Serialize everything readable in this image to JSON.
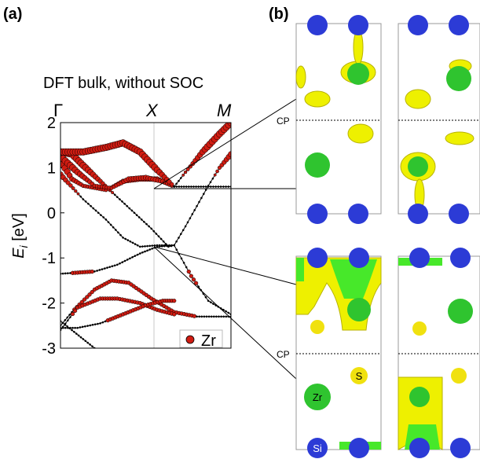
{
  "panel_a_label": "(a)",
  "panel_b_label": "(b)",
  "plot_title": "DFT bulk, without SOC",
  "kpoints": [
    "Γ",
    "X",
    "M"
  ],
  "ylabel_E": "E",
  "ylabel_sub": "i",
  "ylabel_unit": " [eV]",
  "legend_label": "Zr",
  "cp_label": "CP",
  "atom_labels": {
    "zr": "Zr",
    "s": "S",
    "si": "Si"
  },
  "colors": {
    "zr_marker": "#d01c12",
    "si_atom": "#2c3bd6",
    "zr_atom": "#2fc42f",
    "s_atom": "#f0e10f",
    "isosurface": "#eef000",
    "isosurface_green": "#47e82a"
  },
  "chart_data": {
    "type": "line",
    "title": "DFT bulk, without SOC",
    "xlabel": "",
    "ylabel": "E_i [eV]",
    "x_ticks": [
      "Γ",
      "X",
      "M"
    ],
    "xlim": [
      0,
      1.5
    ],
    "ylim": [
      -3,
      2
    ],
    "y_ticks": [
      2,
      1,
      0,
      -1,
      -2,
      -3
    ],
    "legend": "bottom-right",
    "series": [
      {
        "values": [
          [
            0,
            1.35
          ],
          [
            0.1,
            1.3
          ],
          [
            0.2,
            1.05
          ],
          [
            0.35,
            0.7
          ],
          [
            0.5,
            0.35
          ],
          [
            0.65,
            0.0
          ],
          [
            0.8,
            -0.35
          ],
          [
            0.95,
            -0.75
          ],
          [
            1.0,
            -0.72
          ],
          [
            1.15,
            -1.4
          ],
          [
            1.3,
            -1.95
          ],
          [
            1.5,
            -2.25
          ]
        ]
      },
      {
        "values": [
          [
            0,
            1.15
          ],
          [
            0.1,
            0.75
          ],
          [
            0.2,
            0.6
          ],
          [
            0.3,
            0.55
          ],
          [
            0.4,
            0.5
          ],
          [
            0.55,
            0.7
          ],
          [
            0.7,
            0.75
          ],
          [
            0.85,
            0.75
          ],
          [
            1.0,
            0.58
          ],
          [
            1.1,
            0.9
          ],
          [
            1.25,
            1.35
          ],
          [
            1.4,
            1.75
          ],
          [
            1.5,
            2.0
          ]
        ]
      },
      {
        "values": [
          [
            0,
            1.25
          ],
          [
            0.15,
            0.9
          ],
          [
            0.3,
            0.6
          ],
          [
            0.45,
            0.55
          ],
          [
            0.6,
            0.75
          ],
          [
            0.75,
            0.78
          ],
          [
            0.9,
            0.7
          ],
          [
            1.0,
            0.58
          ],
          [
            1.15,
            0.58
          ],
          [
            1.3,
            0.58
          ],
          [
            1.5,
            0.58
          ]
        ]
      },
      {
        "values": [
          [
            0,
            1.35
          ],
          [
            0.2,
            1.35
          ],
          [
            0.4,
            1.45
          ],
          [
            0.55,
            1.55
          ],
          [
            0.7,
            1.35
          ],
          [
            0.85,
            0.95
          ],
          [
            1.0,
            0.58
          ]
        ]
      },
      {
        "values": [
          [
            0,
            0.85
          ],
          [
            0.2,
            0.3
          ],
          [
            0.4,
            -0.15
          ],
          [
            0.55,
            -0.55
          ],
          [
            0.7,
            -0.75
          ],
          [
            0.85,
            -0.72
          ],
          [
            1.0,
            -0.72
          ]
        ]
      },
      {
        "values": [
          [
            0,
            -1.35
          ],
          [
            0.3,
            -1.3
          ],
          [
            0.5,
            -1.15
          ],
          [
            0.7,
            -0.9
          ],
          [
            0.85,
            -0.75
          ],
          [
            1.0,
            -0.72
          ],
          [
            1.1,
            -0.3
          ],
          [
            1.2,
            0.15
          ],
          [
            1.3,
            0.6
          ],
          [
            1.4,
            1.0
          ],
          [
            1.5,
            1.3
          ]
        ]
      },
      {
        "values": [
          [
            0,
            -2.5
          ],
          [
            0.1,
            -2.2
          ],
          [
            0.3,
            -1.7
          ],
          [
            0.45,
            -1.5
          ],
          [
            0.6,
            -1.55
          ],
          [
            0.8,
            -1.9
          ],
          [
            1.0,
            -2.2
          ],
          [
            1.2,
            -2.3
          ],
          [
            1.35,
            -2.3
          ],
          [
            1.5,
            -2.3
          ]
        ]
      },
      {
        "values": [
          [
            0,
            -2.6
          ],
          [
            0.15,
            -2.1
          ],
          [
            0.35,
            -1.9
          ],
          [
            0.5,
            -1.9
          ],
          [
            0.7,
            -2.0
          ],
          [
            0.85,
            -2.15
          ],
          [
            1.0,
            -2.25
          ]
        ]
      },
      {
        "values": [
          [
            0,
            -2.4
          ],
          [
            0.1,
            -2.6
          ],
          [
            0.2,
            -2.8
          ],
          [
            0.3,
            -3.0
          ]
        ]
      },
      {
        "values": [
          [
            0,
            -2.55
          ],
          [
            0.15,
            -2.55
          ],
          [
            0.35,
            -2.45
          ],
          [
            0.55,
            -2.25
          ],
          [
            0.75,
            -2.05
          ],
          [
            0.9,
            -1.95
          ],
          [
            1.0,
            -1.95
          ]
        ]
      }
    ]
  }
}
